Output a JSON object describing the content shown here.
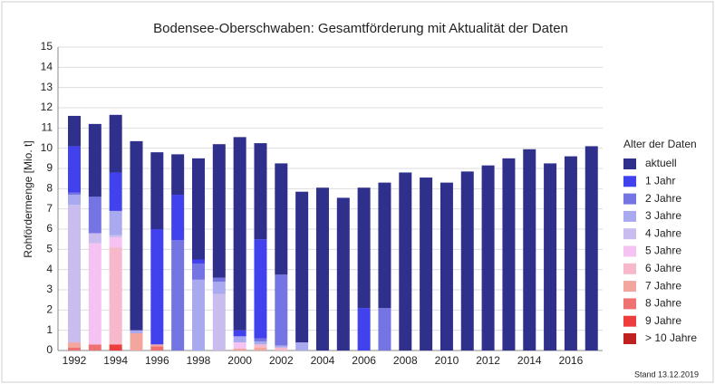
{
  "chart_data": {
    "type": "stacked_bar",
    "title": "Bodensee-Oberschwaben: Gesamtförderung mit Aktualität der Daten",
    "y_label": "Rohfördermenge [Mio. t]",
    "legend_title": "Alter der Daten",
    "annotation": "Stand 13.12.2019",
    "legend_position": "right",
    "grid": true,
    "categories": [
      "1992",
      null,
      "1994",
      null,
      "1996",
      null,
      "1998",
      null,
      "2000",
      null,
      "2002",
      null,
      "2004",
      null,
      "2006",
      null,
      "2008",
      null,
      "2010",
      null,
      "2012",
      null,
      "2014",
      null,
      "2016",
      null
    ],
    "ylim": [
      0,
      15
    ],
    "yticks": [
      0,
      1,
      2,
      3,
      4,
      5,
      6,
      7,
      8,
      9,
      10,
      11,
      12,
      13,
      14,
      15
    ],
    "series": [
      {
        "name": "aktuell",
        "color": "#2f2f8c",
        "values": [
          1.5,
          3.6,
          2.85,
          9.35,
          3.8,
          2.0,
          5.0,
          6.6,
          9.55,
          4.75,
          5.5,
          7.45,
          8.05,
          7.55,
          5.95,
          6.2,
          8.8,
          8.55,
          8.3,
          8.85,
          9.15,
          9.5,
          9.95,
          9.25,
          9.6,
          10.1
        ]
      },
      {
        "name": "1 Jahr",
        "color": "#4141ee",
        "values": [
          2.3,
          0,
          1.9,
          0,
          5.7,
          2.25,
          0.2,
          0,
          0.3,
          4.9,
          0,
          0,
          0,
          0,
          2.1,
          0,
          0,
          0,
          0,
          0,
          0,
          0,
          0,
          0,
          0,
          0
        ]
      },
      {
        "name": "2 Jahre",
        "color": "#7474e2",
        "values": [
          0.1,
          1.8,
          0,
          0,
          0,
          5.45,
          0.8,
          0.2,
          0,
          0.15,
          3.5,
          0,
          0,
          0,
          0,
          2.1,
          0,
          0,
          0,
          0,
          0,
          0,
          0,
          0,
          0,
          0
        ]
      },
      {
        "name": "3 Jahre",
        "color": "#a9a9ef",
        "values": [
          0.5,
          0,
          1.2,
          0.15,
          0,
          0,
          3.5,
          0.6,
          0.3,
          0.15,
          0.1,
          0.4,
          0,
          0,
          0,
          0,
          0,
          0,
          0,
          0,
          0,
          0,
          0,
          0,
          0,
          0
        ]
      },
      {
        "name": "4 Jahre",
        "color": "#cbbcf0",
        "values": [
          6.8,
          0.5,
          0.1,
          0,
          0,
          0,
          0,
          2.8,
          0,
          0,
          0,
          0,
          0,
          0,
          0,
          0,
          0,
          0,
          0,
          0,
          0,
          0,
          0,
          0,
          0,
          0
        ]
      },
      {
        "name": "5 Jahre",
        "color": "#f6c2f2",
        "values": [
          0,
          5.0,
          0.5,
          0,
          0,
          0,
          0,
          0,
          0.3,
          0,
          0,
          0,
          0,
          0,
          0,
          0,
          0,
          0,
          0,
          0,
          0,
          0,
          0,
          0,
          0,
          0
        ]
      },
      {
        "name": "6 Jahre",
        "color": "#f6b8ca",
        "values": [
          0,
          0,
          4.8,
          0,
          0,
          0,
          0,
          0,
          0,
          0.15,
          0.15,
          0,
          0,
          0,
          0,
          0,
          0,
          0,
          0,
          0,
          0,
          0,
          0,
          0,
          0,
          0
        ]
      },
      {
        "name": "7 Jahre",
        "color": "#f3a69e",
        "values": [
          0.25,
          0,
          0,
          0.85,
          0.1,
          0,
          0,
          0,
          0.1,
          0.15,
          0,
          0,
          0,
          0,
          0,
          0,
          0,
          0,
          0,
          0,
          0,
          0,
          0,
          0,
          0,
          0
        ]
      },
      {
        "name": "8 Jahre",
        "color": "#ef7272",
        "values": [
          0.15,
          0.3,
          0,
          0,
          0.2,
          0,
          0,
          0,
          0,
          0,
          0,
          0,
          0,
          0,
          0,
          0,
          0,
          0,
          0,
          0,
          0,
          0,
          0,
          0,
          0,
          0
        ]
      },
      {
        "name": "9 Jahre",
        "color": "#ee3d3d",
        "values": [
          0,
          0,
          0.3,
          0,
          0,
          0,
          0,
          0,
          0,
          0,
          0,
          0,
          0,
          0,
          0,
          0,
          0,
          0,
          0,
          0,
          0,
          0,
          0,
          0,
          0,
          0
        ]
      },
      {
        "name": "> 10 Jahre",
        "color": "#bf2020",
        "values": [
          0,
          0,
          0,
          0,
          0,
          0,
          0,
          0,
          0,
          0,
          0,
          0,
          0,
          0,
          0,
          0,
          0,
          0,
          0,
          0,
          0,
          0,
          0,
          0,
          0,
          0
        ]
      }
    ]
  }
}
